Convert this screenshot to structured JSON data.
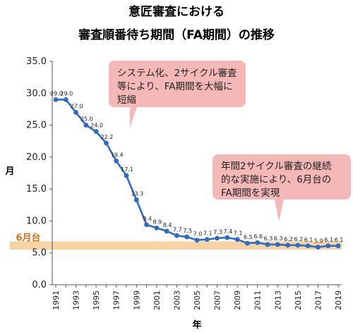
{
  "chart_data": {
    "type": "line",
    "title_lines": [
      "意匠審査における",
      "審査順番待ち期間（FA期間）の推移"
    ],
    "xlabel": "年",
    "ylabel": "月",
    "ylim": [
      0,
      35
    ],
    "yticks": [
      "0.0",
      "5.0",
      "10.0",
      "15.0",
      "20.0",
      "25.0",
      "30.0",
      "35.0"
    ],
    "x_tick_labels": [
      "1991",
      "1993",
      "1995",
      "1997",
      "1999",
      "2001",
      "2003",
      "2005",
      "2007",
      "2009",
      "2011",
      "2013",
      "2015",
      "2017",
      "2019"
    ],
    "x": [
      1991,
      1992,
      1993,
      1994,
      1995,
      1996,
      1997,
      1998,
      1999,
      2000,
      2001,
      2002,
      2003,
      2004,
      2005,
      2006,
      2007,
      2008,
      2009,
      2010,
      2011,
      2012,
      2013,
      2014,
      2015,
      2016,
      2017,
      2018,
      2019
    ],
    "values": [
      29.0,
      29.0,
      27.0,
      25.0,
      24.0,
      22.2,
      19.4,
      17.1,
      13.3,
      9.4,
      8.9,
      8.4,
      7.7,
      7.5,
      7.0,
      7.1,
      7.3,
      7.4,
      7.1,
      6.5,
      6.6,
      6.3,
      6.3,
      6.2,
      6.2,
      6.1,
      5.9,
      6.1,
      6.1
    ],
    "value_labels": [
      "29.0",
      "29.0",
      "27.0",
      "25.0",
      "24.0",
      "22.2",
      "19.4",
      "17.1",
      "13.3",
      "9.4",
      "8.9",
      "8.4",
      "7.7",
      "7.5",
      "7.0",
      "7.1",
      "7.3",
      "7.4",
      "7.1",
      "6.5",
      "6.6",
      "6.3",
      "6.3",
      "6.2",
      "6.2",
      "6.1",
      "5.9",
      "6.1",
      "6.1"
    ],
    "line_color": "#2e6bc4",
    "band": {
      "from": 5.5,
      "to": 6.8,
      "label": "6月台",
      "color": "#f7d3a3",
      "label_color": "#c9741a"
    },
    "grid": false,
    "callouts": [
      {
        "lines": [
          "システム化、2サイクル審査",
          "等により、FA期間を大幅に",
          "短縮"
        ],
        "color": "#f5b8b8"
      },
      {
        "lines": [
          "年間2サイクル審査の継続",
          "的な実施により、6月台の",
          "FA期間を実現"
        ],
        "color": "#f5b8b8"
      }
    ]
  }
}
